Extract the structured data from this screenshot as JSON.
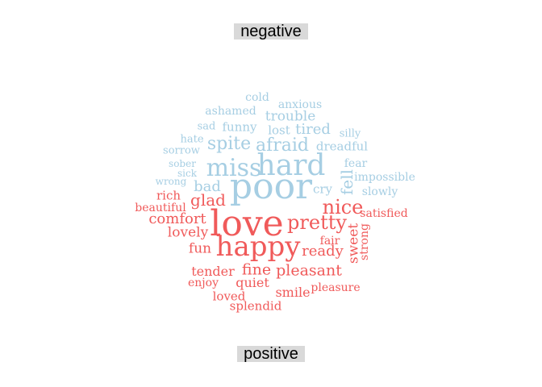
{
  "chart_data": {
    "type": "wordcloud",
    "groups": [
      {
        "name": "negative",
        "color": "#a6cee3",
        "words": [
          {
            "text": "poor",
            "weight": 44
          },
          {
            "text": "hard",
            "weight": 36
          },
          {
            "text": "miss",
            "weight": 30
          },
          {
            "text": "afraid",
            "weight": 22
          },
          {
            "text": "spite",
            "weight": 22
          },
          {
            "text": "fell",
            "weight": 20
          },
          {
            "text": "bad",
            "weight": 18
          },
          {
            "text": "tired",
            "weight": 18
          },
          {
            "text": "trouble",
            "weight": 17
          },
          {
            "text": "dreadful",
            "weight": 15
          },
          {
            "text": "funny",
            "weight": 15
          },
          {
            "text": "lost",
            "weight": 15
          },
          {
            "text": "cry",
            "weight": 15
          },
          {
            "text": "ashamed",
            "weight": 14
          },
          {
            "text": "anxious",
            "weight": 14
          },
          {
            "text": "cold",
            "weight": 14
          },
          {
            "text": "fear",
            "weight": 14
          },
          {
            "text": "impossible",
            "weight": 14
          },
          {
            "text": "slowly",
            "weight": 14
          },
          {
            "text": "sad",
            "weight": 13
          },
          {
            "text": "silly",
            "weight": 13
          },
          {
            "text": "hate",
            "weight": 13
          },
          {
            "text": "sorrow",
            "weight": 13
          },
          {
            "text": "sober",
            "weight": 12
          },
          {
            "text": "sick",
            "weight": 12
          },
          {
            "text": "wrong",
            "weight": 12
          }
        ]
      },
      {
        "name": "positive",
        "color": "#f05a5a",
        "words": [
          {
            "text": "love",
            "weight": 44
          },
          {
            "text": "happy",
            "weight": 34
          },
          {
            "text": "pretty",
            "weight": 24
          },
          {
            "text": "nice",
            "weight": 24
          },
          {
            "text": "glad",
            "weight": 20
          },
          {
            "text": "pleasant",
            "weight": 19
          },
          {
            "text": "fine",
            "weight": 19
          },
          {
            "text": "comfort",
            "weight": 18
          },
          {
            "text": "ready",
            "weight": 18
          },
          {
            "text": "sweet",
            "weight": 17
          },
          {
            "text": "lovely",
            "weight": 17
          },
          {
            "text": "fun",
            "weight": 17
          },
          {
            "text": "quiet",
            "weight": 16
          },
          {
            "text": "tender",
            "weight": 16
          },
          {
            "text": "smile",
            "weight": 16
          },
          {
            "text": "rich",
            "weight": 15
          },
          {
            "text": "loved",
            "weight": 15
          },
          {
            "text": "splendid",
            "weight": 15
          },
          {
            "text": "beautiful",
            "weight": 14
          },
          {
            "text": "satisfied",
            "weight": 14
          },
          {
            "text": "enjoy",
            "weight": 14
          },
          {
            "text": "fair",
            "weight": 14
          },
          {
            "text": "pleasure",
            "weight": 14
          },
          {
            "text": "strong",
            "weight": 14
          }
        ]
      }
    ]
  }
}
